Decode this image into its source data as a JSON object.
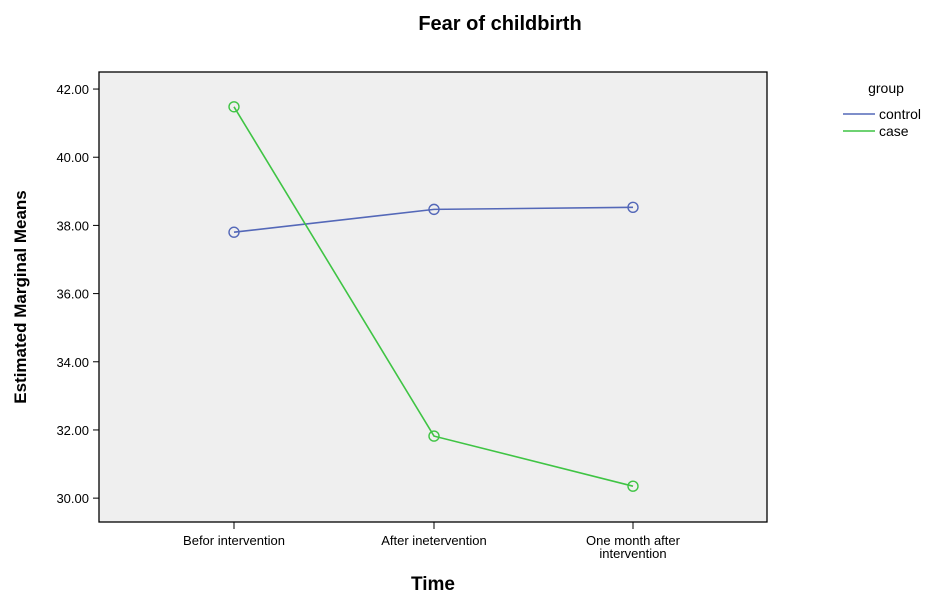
{
  "chart_data": {
    "type": "line",
    "title": "Fear of childbirth",
    "xlabel": "Time",
    "ylabel": "Estimated Marginal Means",
    "categories": [
      "Befor intervention",
      "After inetervention",
      "One month after intervention"
    ],
    "category_lines": [
      [
        "Befor intervention"
      ],
      [
        "After inetervention"
      ],
      [
        "One month after",
        "intervention"
      ]
    ],
    "yticks": [
      "30.00",
      "32.00",
      "34.00",
      "36.00",
      "38.00",
      "40.00",
      "42.00"
    ],
    "ylim": [
      29.3,
      42.5
    ],
    "grid": false,
    "legend_position": "top-right",
    "legend_title": "group",
    "series": [
      {
        "name": "control",
        "color": "#5468b8",
        "values": [
          37.8,
          38.47,
          38.53
        ]
      },
      {
        "name": "case",
        "color": "#3fc444",
        "values": [
          41.48,
          31.82,
          30.35
        ]
      }
    ],
    "plot_background": "#efefef"
  }
}
